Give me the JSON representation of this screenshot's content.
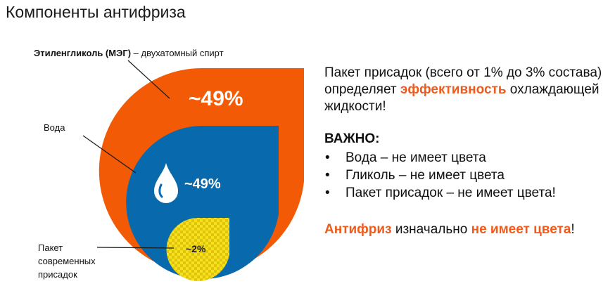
{
  "title": "Компоненты антифриза",
  "labels": {
    "meg_bold": "Этиленгликоль (МЭГ)",
    "meg_rest": " – двухатомный спирт",
    "water": "Вода",
    "additives": "Пакет современных присадок"
  },
  "values": {
    "meg": "~49%",
    "water": "~49%",
    "additives": "~2%"
  },
  "colors": {
    "orange": "#f25a05",
    "blue": "#0969ad",
    "yellow": "#f5e11e",
    "accent": "#f05a1a"
  },
  "icons": {
    "drop": "water-drop-icon"
  },
  "right": {
    "line1": "Пакет присадок (всего от 1% до 3% состава)",
    "line2_pre": "определяет ",
    "line2_accent": "эффективность",
    "line2_post": " охлаждающей жидкости!",
    "important": "ВАЖНО:",
    "bullets": [
      "Вода – не имеет цвета",
      "Гликоль – не имеет цвета",
      "Пакет присадок – не имеет цвета!"
    ],
    "final_a": "Антифриз",
    "final_b": " изначально ",
    "final_c": "не имеет цвета",
    "final_d": "!"
  }
}
